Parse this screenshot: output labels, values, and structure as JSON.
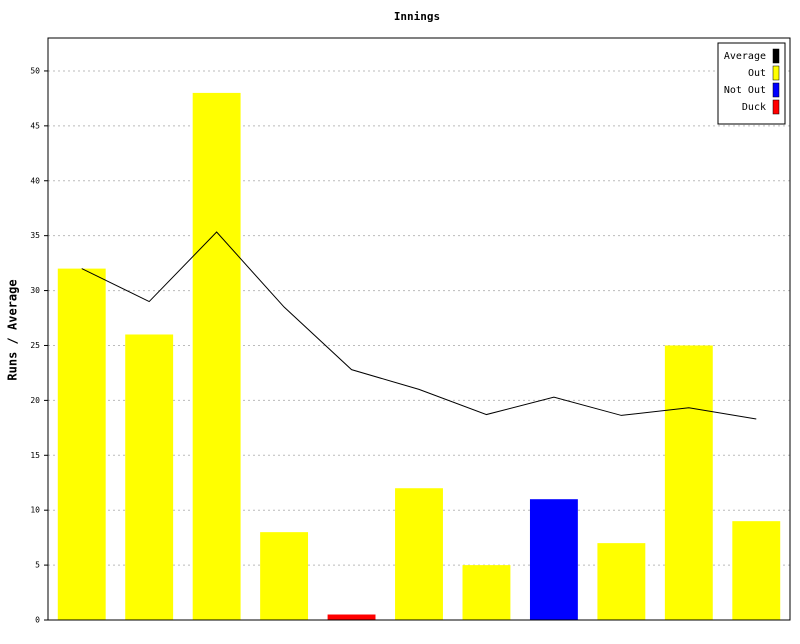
{
  "chart_data": {
    "type": "bar",
    "title": "Innings",
    "y_label": "Runs / Average",
    "categories": [
      null,
      null,
      null,
      null,
      null,
      null,
      null,
      null,
      null,
      null,
      null
    ],
    "series": [
      {
        "name": "Average",
        "color": "#000000",
        "type": "line",
        "values": [
          32,
          29,
          35.33,
          28.5,
          22.8,
          21,
          18.71,
          20.29,
          18.63,
          19.33,
          18.3
        ]
      },
      {
        "name": "Out",
        "color": "#ffff00",
        "type": "bar",
        "values": [
          32,
          26,
          48,
          8,
          null,
          12,
          5,
          null,
          7,
          25,
          9
        ]
      },
      {
        "name": "Not Out",
        "color": "#0000ff",
        "type": "bar",
        "values": [
          null,
          null,
          null,
          null,
          null,
          null,
          null,
          11,
          null,
          null,
          null
        ]
      },
      {
        "name": "Duck",
        "color": "#ff0000",
        "type": "bar",
        "values": [
          null,
          null,
          null,
          null,
          0.5,
          null,
          null,
          null,
          null,
          null,
          null
        ]
      }
    ],
    "ylim": [
      0,
      53
    ],
    "yticks": [
      0,
      5,
      10,
      15,
      20,
      25,
      30,
      35,
      40,
      45,
      50
    ],
    "grid": true,
    "legend": "top-right"
  }
}
